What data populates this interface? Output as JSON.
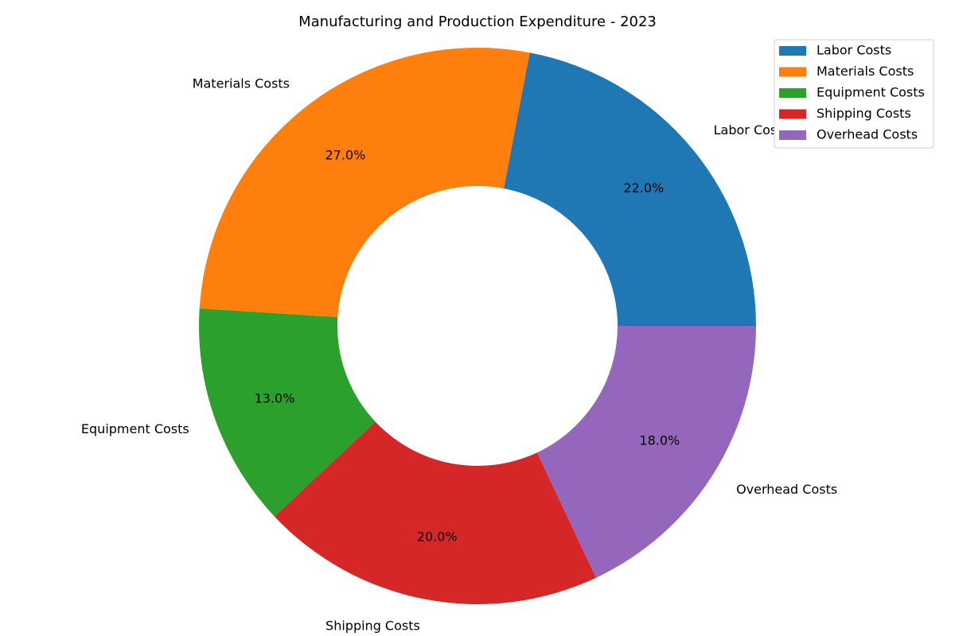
{
  "chart_data": {
    "type": "pie",
    "title": "Manufacturing and Production Expenditure - 2023",
    "categories": [
      "Labor Costs",
      "Materials Costs",
      "Equipment Costs",
      "Shipping Costs",
      "Overhead Costs"
    ],
    "values": [
      22.0,
      27.0,
      13.0,
      20.0,
      18.0
    ],
    "percent_labels": [
      "22.0%",
      "27.0%",
      "13.0%",
      "20.0%",
      "18.0%"
    ],
    "colors": [
      "#1f77b4",
      "#ff7f0e",
      "#2ca02c",
      "#d62728",
      "#9467bd"
    ],
    "donut": true,
    "legend": {
      "placement": "top-right",
      "entries": [
        "Labor Costs",
        "Materials Costs",
        "Equipment Costs",
        "Shipping Costs",
        "Overhead Costs"
      ]
    }
  }
}
